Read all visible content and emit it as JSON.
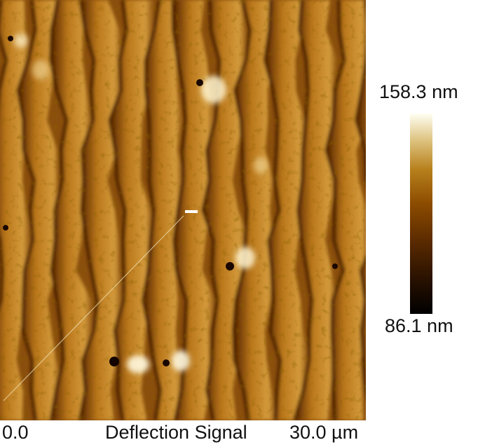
{
  "image": {
    "channel": "Deflection Signal",
    "x_axis": {
      "min_label": "0.0",
      "max_label": "30.0 µm"
    }
  },
  "colorbar": {
    "max_label": "158.3 nm",
    "min_label": "86.1 nm",
    "colors": [
      "#000000",
      "#5a2a00",
      "#8c4c00",
      "#b7801c",
      "#dcc07a",
      "#fffff2"
    ]
  }
}
